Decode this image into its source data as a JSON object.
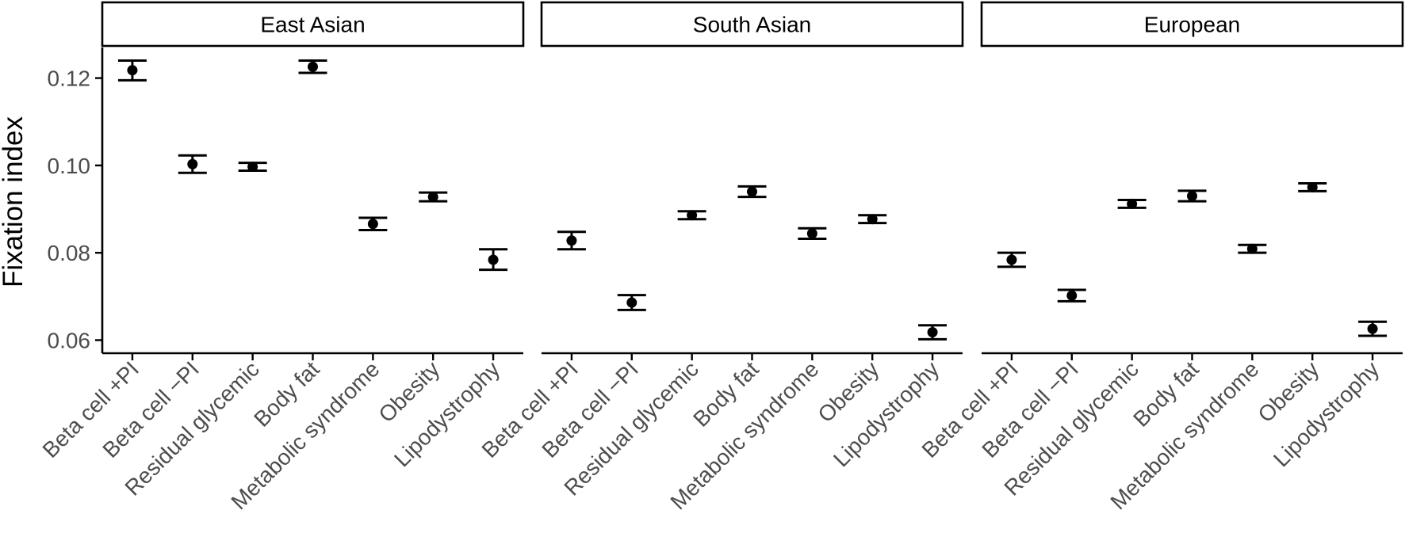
{
  "chart_data": {
    "type": "scatter",
    "subtype": "point-with-error-bars, faceted",
    "ylabel": "Fixation index",
    "xlabel": "",
    "ylim": [
      0.057,
      0.127
    ],
    "yticks": [
      0.06,
      0.08,
      0.1,
      0.12
    ],
    "ytick_labels": [
      "0.06",
      "0.08",
      "0.10",
      "0.12"
    ],
    "categories": [
      "Beta cell +PI",
      "Beta cell −PI",
      "Residual glycemic",
      "Body fat",
      "Metabolic syndrome",
      "Obesity",
      "Lipodystrophy"
    ],
    "grid": false,
    "legend": "none",
    "point_color": "#000000",
    "panels": [
      {
        "name": "East Asian",
        "values": [
          0.1218,
          0.1003,
          0.0997,
          0.1226,
          0.0866,
          0.0928,
          0.0784
        ],
        "lower": [
          0.1195,
          0.0983,
          0.0988,
          0.1212,
          0.0852,
          0.0918,
          0.0761
        ],
        "upper": [
          0.124,
          0.1023,
          0.1006,
          0.124,
          0.088,
          0.0938,
          0.0808
        ]
      },
      {
        "name": "South Asian",
        "values": [
          0.0828,
          0.0686,
          0.0886,
          0.094,
          0.0844,
          0.0877,
          0.0618
        ],
        "lower": [
          0.0808,
          0.0669,
          0.0877,
          0.0928,
          0.0832,
          0.0868,
          0.0602
        ],
        "upper": [
          0.0848,
          0.0703,
          0.0895,
          0.0952,
          0.0856,
          0.0886,
          0.0634
        ]
      },
      {
        "name": "European",
        "values": [
          0.0784,
          0.0702,
          0.0912,
          0.093,
          0.0809,
          0.095,
          0.0626
        ],
        "lower": [
          0.0768,
          0.0689,
          0.0903,
          0.0918,
          0.08,
          0.0941,
          0.061
        ],
        "upper": [
          0.08,
          0.0715,
          0.0921,
          0.0942,
          0.0818,
          0.0959,
          0.0642
        ]
      }
    ]
  }
}
